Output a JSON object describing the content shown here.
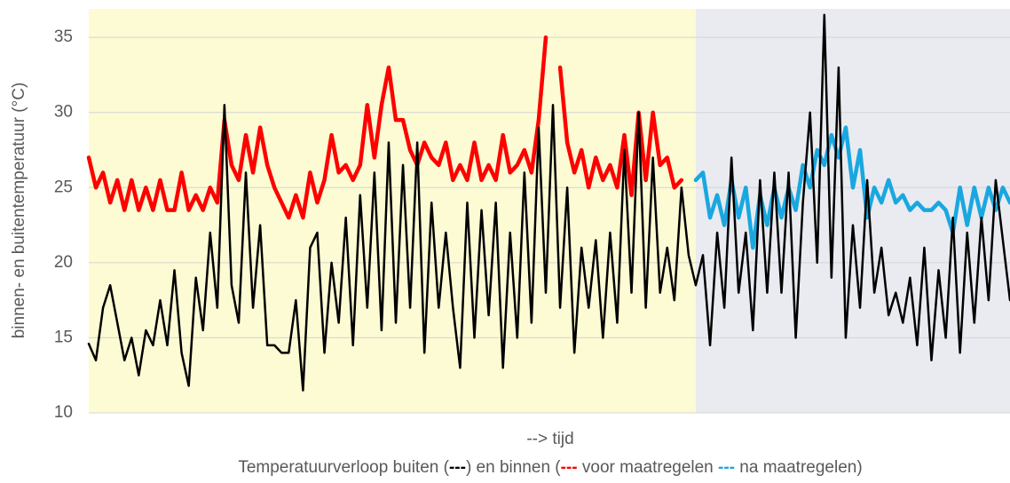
{
  "chart_data": {
    "type": "line",
    "y_label": "binnen- en buitentemperatuur (°C)",
    "x_label": "--> tijd",
    "caption": [
      "Temperatuurverloop buiten (",
      "---",
      ") en binnen (",
      "---",
      " voor maatregelen ",
      "---",
      " na maatregelen)"
    ],
    "ylim": [
      10,
      36.9
    ],
    "yticks": [
      10,
      15,
      20,
      25,
      30,
      35
    ],
    "grid": true,
    "series": [
      {
        "color": "#000000",
        "values": [
          14.6,
          13.5,
          17,
          18.5,
          16,
          13.5,
          15,
          12.5,
          15.5,
          14.5,
          17.5,
          14.5,
          19.5,
          14,
          11.8,
          19,
          15.5,
          22,
          17,
          30.5,
          18.5,
          16,
          26,
          17,
          22.5,
          14.5,
          14.5,
          14,
          14,
          17.5,
          11.5,
          21,
          22,
          14,
          20,
          16,
          23,
          14.5,
          24.5,
          17,
          26,
          15.5,
          28,
          16,
          26.5,
          17,
          28,
          14,
          24,
          17,
          22,
          17,
          13,
          24,
          15,
          23.5,
          16.5,
          24,
          13,
          22,
          15,
          26,
          16,
          29,
          18,
          30.5,
          17,
          25,
          14,
          21,
          17,
          21.5,
          15,
          22,
          16,
          27.5,
          18,
          30,
          17,
          27,
          18,
          21,
          17.5,
          25,
          20.5,
          18.5,
          20.5,
          14.5,
          22,
          17,
          27,
          18,
          22,
          15.5,
          25.5,
          18,
          26,
          18,
          26,
          15,
          24,
          30,
          20,
          36.5,
          19,
          33,
          15,
          22.5,
          17,
          25.5,
          18,
          21,
          16.5,
          18,
          16,
          19,
          14.5,
          21,
          13.5,
          19.5,
          15,
          23,
          14,
          22,
          16,
          23,
          17.5,
          25.5,
          21.5,
          17.5
        ]
      },
      {
        "color": "#ff0000",
        "values": [
          27,
          25,
          26,
          24,
          25.5,
          23.5,
          25.5,
          23.5,
          25,
          23.5,
          25.5,
          23.5,
          23.5,
          26,
          23.5,
          24.5,
          23.5,
          25,
          24,
          29.5,
          26.5,
          25.5,
          28.5,
          26,
          29,
          26.5,
          25,
          24,
          23,
          24.5,
          23,
          26,
          24,
          25.5,
          28.5,
          26,
          26.5,
          25.5,
          26.5,
          30.5,
          27,
          30.5,
          33,
          29.5,
          29.5,
          27.5,
          26.5,
          28,
          27,
          26.5,
          28,
          25.5,
          26.5,
          25.5,
          28,
          25.5,
          26.5,
          25.5,
          28.5,
          26,
          26.5,
          27.5,
          26,
          29.5,
          35,
          null,
          33,
          28,
          26,
          27.5,
          25,
          27,
          25.5,
          26.5,
          25,
          28.5,
          24.5,
          30,
          25.5,
          30,
          26.5,
          27,
          25,
          25.5,
          null,
          null,
          null,
          null,
          null,
          null,
          null,
          null,
          null,
          null,
          null,
          null,
          null,
          null,
          null,
          null,
          null,
          null,
          null,
          null,
          null,
          null,
          null,
          null,
          null,
          null,
          null,
          null,
          null,
          null,
          null,
          null,
          null,
          null,
          null,
          null,
          null,
          null,
          null,
          null,
          null,
          null,
          null,
          null,
          null,
          null
        ]
      },
      {
        "color": "#1aa7e0",
        "values": [
          null,
          null,
          null,
          null,
          null,
          null,
          null,
          null,
          null,
          null,
          null,
          null,
          null,
          null,
          null,
          null,
          null,
          null,
          null,
          null,
          null,
          null,
          null,
          null,
          null,
          null,
          null,
          null,
          null,
          null,
          null,
          null,
          null,
          null,
          null,
          null,
          null,
          null,
          null,
          null,
          null,
          null,
          null,
          null,
          null,
          null,
          null,
          null,
          null,
          null,
          null,
          null,
          null,
          null,
          null,
          null,
          null,
          null,
          null,
          null,
          null,
          null,
          null,
          null,
          null,
          null,
          null,
          null,
          null,
          null,
          null,
          null,
          null,
          null,
          null,
          null,
          null,
          null,
          null,
          null,
          null,
          null,
          null,
          null,
          null,
          25.5,
          26,
          23,
          24.5,
          22.5,
          25.5,
          23,
          25,
          21,
          24.5,
          22.5,
          25,
          23,
          25,
          23.5,
          26.5,
          25,
          27.5,
          26.5,
          28.5,
          27,
          29,
          25,
          27.5,
          23,
          25,
          24,
          25.5,
          24,
          24.5,
          23.5,
          24,
          23.5,
          23.5,
          24,
          23.5,
          22,
          25,
          22.5,
          25,
          23,
          25,
          23.5,
          25,
          24
        ]
      }
    ]
  }
}
